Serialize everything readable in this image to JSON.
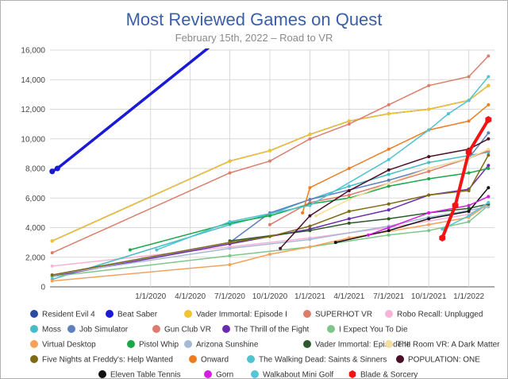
{
  "chart_data": {
    "type": "line",
    "title": "Most Reviewed Games on Quest",
    "subtitle": "February 15th, 2022 – Road to VR",
    "xlabel": "",
    "ylabel": "",
    "ylim": [
      0,
      16000
    ],
    "xlim": [
      "2019-05-15",
      "2022-03-01"
    ],
    "yticks": [
      "0",
      "2,000",
      "4,000",
      "6,000",
      "8,000",
      "10,000",
      "12,000",
      "14,000",
      "16,000"
    ],
    "xticks": [
      {
        "date": "2020-01-01",
        "label": "1/1/2020"
      },
      {
        "date": "2020-04-01",
        "label": "4/1/2020"
      },
      {
        "date": "2020-07-01",
        "label": "7/1/2020"
      },
      {
        "date": "2020-10-01",
        "label": "10/1/2020"
      },
      {
        "date": "2021-01-01",
        "label": "1/1/2021"
      },
      {
        "date": "2021-04-01",
        "label": "4/1/2021"
      },
      {
        "date": "2021-07-01",
        "label": "7/1/2021"
      },
      {
        "date": "2021-10-01",
        "label": "10/1/2021"
      },
      {
        "date": "2022-01-01",
        "label": "1/1/2022"
      }
    ],
    "grid": true,
    "legend_position": "bottom",
    "series": [
      {
        "name": "Resident Evil 4",
        "color": "#2b4ba0",
        "width": 1.5,
        "points": [
          [
            "2019-05-20",
            3100
          ],
          [
            "2020-07-01",
            8500
          ],
          [
            "2020-10-01",
            9200
          ],
          [
            "2021-01-01",
            10300
          ],
          [
            "2021-04-01",
            11200
          ],
          [
            "2021-07-01",
            11700
          ],
          [
            "2021-10-01",
            12000
          ],
          [
            "2022-01-01",
            12600
          ],
          [
            "2022-02-15",
            13600
          ]
        ]
      },
      {
        "name": "Beat Saber",
        "color": "#1a1ad6",
        "width": 3.5,
        "points": [
          [
            "2019-05-20",
            7800
          ],
          [
            "2019-06-01",
            8000
          ],
          [
            "2020-05-15",
            16200
          ]
        ]
      },
      {
        "name": "Vader Immortal: Episode I",
        "color": "#f1c232",
        "width": 1.5,
        "points": [
          [
            "2019-05-20",
            3100
          ],
          [
            "2020-07-01",
            8500
          ],
          [
            "2020-10-01",
            9200
          ],
          [
            "2021-01-01",
            10300
          ],
          [
            "2021-04-01",
            11200
          ],
          [
            "2021-07-01",
            11700
          ],
          [
            "2021-10-01",
            12000
          ],
          [
            "2022-01-01",
            12600
          ],
          [
            "2022-02-15",
            13600
          ]
        ]
      },
      {
        "name": "SUPERHOT VR",
        "color": "#dd7e6b",
        "width": 1.5,
        "points": [
          [
            "2019-05-20",
            2300
          ],
          [
            "2020-07-01",
            7700
          ],
          [
            "2020-10-01",
            8500
          ],
          [
            "2021-01-01",
            10000
          ],
          [
            "2021-04-01",
            11000
          ],
          [
            "2021-07-01",
            12300
          ],
          [
            "2021-10-01",
            13600
          ],
          [
            "2022-01-01",
            14200
          ],
          [
            "2022-02-15",
            15600
          ]
        ]
      },
      {
        "name": "Robo Recall: Unplugged",
        "color": "#f7b3d8",
        "width": 1.5,
        "points": [
          [
            "2019-05-20",
            1400
          ],
          [
            "2020-07-01",
            2700
          ],
          [
            "2021-01-01",
            3300
          ],
          [
            "2021-07-01",
            4000
          ],
          [
            "2022-01-01",
            4900
          ],
          [
            "2022-02-15",
            5600
          ]
        ]
      },
      {
        "name": "Moss",
        "color": "#46bdc6",
        "width": 1.5,
        "points": [
          [
            "2019-05-20",
            500
          ],
          [
            "2020-07-01",
            4200
          ],
          [
            "2020-10-01",
            4900
          ],
          [
            "2021-01-01",
            5900
          ],
          [
            "2021-04-01",
            6800
          ],
          [
            "2021-07-01",
            7600
          ],
          [
            "2021-10-01",
            8400
          ],
          [
            "2022-02-15",
            9100
          ]
        ]
      },
      {
        "name": "Job Simulator",
        "color": "#5f7fbf",
        "width": 1.5,
        "points": [
          [
            "2019-05-20",
            800
          ],
          [
            "2020-07-01",
            3000
          ],
          [
            "2020-10-01",
            5000
          ],
          [
            "2021-01-01",
            5900
          ],
          [
            "2021-07-01",
            7200
          ],
          [
            "2021-10-01",
            8000
          ],
          [
            "2022-01-01",
            8700
          ],
          [
            "2022-02-15",
            10400
          ]
        ]
      },
      {
        "name": "Gun Club VR",
        "color": "#e07a6e",
        "width": 1.5,
        "points": [
          [
            "2020-10-01",
            4200
          ],
          [
            "2021-01-01",
            5700
          ],
          [
            "2021-04-01",
            6200
          ],
          [
            "2021-10-01",
            7800
          ],
          [
            "2022-01-01",
            8700
          ],
          [
            "2022-02-15",
            9200
          ]
        ]
      },
      {
        "name": "The Thrill of the Fight",
        "color": "#6a2bb0",
        "width": 1.5,
        "points": [
          [
            "2019-05-20",
            700
          ],
          [
            "2020-07-01",
            2900
          ],
          [
            "2021-01-01",
            3900
          ],
          [
            "2021-04-01",
            4600
          ],
          [
            "2021-07-01",
            5200
          ],
          [
            "2021-10-01",
            6200
          ],
          [
            "2022-01-01",
            6600
          ],
          [
            "2022-02-15",
            8200
          ]
        ]
      },
      {
        "name": "I Expect You To Die",
        "color": "#7fc68a",
        "width": 1.5,
        "points": [
          [
            "2019-05-20",
            700
          ],
          [
            "2020-07-01",
            2100
          ],
          [
            "2021-01-01",
            2700
          ],
          [
            "2021-07-01",
            3500
          ],
          [
            "2021-10-01",
            3800
          ],
          [
            "2022-01-01",
            4400
          ],
          [
            "2022-02-15",
            5500
          ]
        ]
      },
      {
        "name": "Virtual Desktop",
        "color": "#f6a15a",
        "width": 1.5,
        "points": [
          [
            "2019-05-20",
            400
          ],
          [
            "2020-07-01",
            1500
          ],
          [
            "2020-10-01",
            2200
          ],
          [
            "2021-01-01",
            2700
          ],
          [
            "2021-04-01",
            3300
          ],
          [
            "2021-10-01",
            4200
          ],
          [
            "2022-01-01",
            4700
          ],
          [
            "2022-02-15",
            5600
          ]
        ]
      },
      {
        "name": "Pistol Whip",
        "color": "#1aa84a",
        "width": 1.5,
        "points": [
          [
            "2019-11-15",
            2500
          ],
          [
            "2020-07-01",
            4300
          ],
          [
            "2020-10-01",
            4800
          ],
          [
            "2021-01-01",
            5600
          ],
          [
            "2021-04-01",
            6000
          ],
          [
            "2021-07-01",
            6800
          ],
          [
            "2021-10-01",
            7300
          ],
          [
            "2022-01-01",
            7700
          ],
          [
            "2022-02-15",
            8000
          ]
        ]
      },
      {
        "name": "Arizona Sunshine",
        "color": "#a6b9d4",
        "width": 1.5,
        "points": [
          [
            "2019-05-20",
            800
          ],
          [
            "2020-07-01",
            2600
          ],
          [
            "2021-01-01",
            3200
          ],
          [
            "2021-07-01",
            4100
          ],
          [
            "2021-10-01",
            4700
          ],
          [
            "2022-02-15",
            5400
          ]
        ]
      },
      {
        "name": "Vader Immortal: Episode III",
        "color": "#2d5a2a",
        "width": 1.5,
        "points": [
          [
            "2020-07-01",
            3100
          ],
          [
            "2021-01-01",
            3800
          ],
          [
            "2021-04-01",
            4300
          ],
          [
            "2021-07-01",
            4600
          ],
          [
            "2021-10-01",
            5000
          ],
          [
            "2022-01-01",
            5300
          ],
          [
            "2022-02-15",
            5600
          ]
        ]
      },
      {
        "name": "The Room VR: A Dark Matter",
        "color": "#f4dfa0",
        "width": 1.5,
        "points": [
          [
            "2021-01-15",
            4800
          ],
          [
            "2021-04-01",
            5900
          ],
          [
            "2021-07-01",
            7000
          ],
          [
            "2021-10-01",
            8000
          ],
          [
            "2022-01-01",
            8700
          ],
          [
            "2022-02-15",
            9300
          ]
        ]
      },
      {
        "name": "Five Nights at Freddy's: Help Wanted",
        "color": "#7e6b14",
        "width": 1.5,
        "points": [
          [
            "2019-05-20",
            800
          ],
          [
            "2020-07-01",
            3000
          ],
          [
            "2020-10-01",
            3400
          ],
          [
            "2021-01-01",
            4100
          ],
          [
            "2021-04-01",
            5100
          ],
          [
            "2021-07-01",
            5600
          ],
          [
            "2021-10-01",
            6200
          ],
          [
            "2022-01-01",
            6500
          ],
          [
            "2022-02-15",
            8900
          ]
        ]
      },
      {
        "name": "Onward",
        "color": "#f07c1e",
        "width": 1.5,
        "points": [
          [
            "2020-12-15",
            5000
          ],
          [
            "2021-01-01",
            6700
          ],
          [
            "2021-04-01",
            8000
          ],
          [
            "2021-07-01",
            9300
          ],
          [
            "2021-10-01",
            10600
          ],
          [
            "2022-01-01",
            11200
          ],
          [
            "2022-02-15",
            12300
          ]
        ]
      },
      {
        "name": "The Walking Dead: Saints & Sinners",
        "color": "#4fc3d0",
        "width": 1.5,
        "points": [
          [
            "2020-01-15",
            2500
          ],
          [
            "2020-07-01",
            4400
          ],
          [
            "2021-01-01",
            5500
          ],
          [
            "2021-07-01",
            8600
          ],
          [
            "2021-10-01",
            10600
          ],
          [
            "2021-11-15",
            11700
          ],
          [
            "2022-01-01",
            12600
          ],
          [
            "2022-02-15",
            14200
          ]
        ]
      },
      {
        "name": "POPULATION: ONE",
        "color": "#4a1028",
        "width": 1.5,
        "points": [
          [
            "2020-10-25",
            2600
          ],
          [
            "2021-01-01",
            4800
          ],
          [
            "2021-04-01",
            6500
          ],
          [
            "2021-07-01",
            7900
          ],
          [
            "2021-10-01",
            8800
          ],
          [
            "2022-01-01",
            9300
          ],
          [
            "2022-02-15",
            10000
          ]
        ]
      },
      {
        "name": "Eleven Table Tennis",
        "color": "#111111",
        "width": 1.5,
        "points": [
          [
            "2021-03-01",
            3000
          ],
          [
            "2021-07-01",
            3800
          ],
          [
            "2021-10-01",
            4600
          ],
          [
            "2022-01-01",
            5100
          ],
          [
            "2022-02-15",
            6700
          ]
        ]
      },
      {
        "name": "Gorn",
        "color": "#d21fe0",
        "width": 1.5,
        "points": [
          [
            "2021-05-15",
            3500
          ],
          [
            "2021-07-01",
            4000
          ],
          [
            "2021-10-01",
            5000
          ],
          [
            "2022-01-01",
            5500
          ],
          [
            "2022-02-15",
            6100
          ]
        ]
      },
      {
        "name": "Walkabout Mini Golf",
        "color": "#56c5d8",
        "width": 1.5,
        "points": [
          [
            "2021-11-01",
            3900
          ],
          [
            "2022-01-01",
            4800
          ],
          [
            "2022-02-15",
            5700
          ]
        ]
      },
      {
        "name": "Blade & Sorcery",
        "color": "#f21414",
        "width": 4,
        "marker": "hexagon",
        "points": [
          [
            "2021-11-01",
            3300
          ],
          [
            "2021-12-01",
            5500
          ],
          [
            "2022-01-01",
            9100
          ],
          [
            "2022-02-15",
            11300
          ]
        ]
      }
    ]
  }
}
